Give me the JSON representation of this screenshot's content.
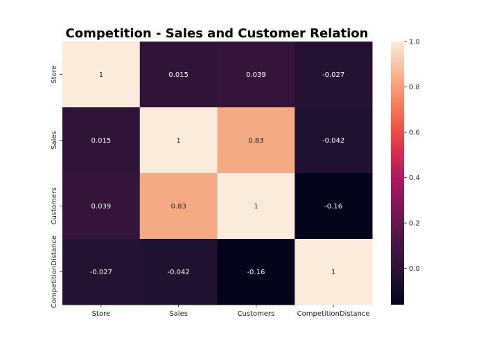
{
  "chart_data": {
    "type": "heatmap",
    "title": "Competition - Sales and Customer Relation",
    "xlabel": "",
    "ylabel": "",
    "x_categories": [
      "Store",
      "Sales",
      "Customers",
      "CompetitionDistance"
    ],
    "y_categories": [
      "Store",
      "Sales",
      "Customers",
      "CompetitionDistance"
    ],
    "values": [
      [
        1,
        0.015,
        0.039,
        -0.027
      ],
      [
        0.015,
        1,
        0.83,
        -0.042
      ],
      [
        0.039,
        0.83,
        1,
        -0.16
      ],
      [
        -0.027,
        -0.042,
        -0.16,
        1
      ]
    ],
    "value_labels": [
      [
        "1",
        "0.015",
        "0.039",
        "-0.027"
      ],
      [
        "0.015",
        "1",
        "0.83",
        "-0.042"
      ],
      [
        "0.039",
        "0.83",
        "1",
        "-0.16"
      ],
      [
        "-0.027",
        "-0.042",
        "-0.16",
        "1"
      ]
    ],
    "colorbar": {
      "range": [
        -0.16,
        1.0
      ],
      "ticks": [
        0.0,
        0.2,
        0.4,
        0.6,
        0.8,
        1.0
      ],
      "tick_labels": [
        "0.0",
        "0.2",
        "0.4",
        "0.6",
        "0.8",
        "1.0"
      ],
      "colormap": "rocket"
    }
  }
}
